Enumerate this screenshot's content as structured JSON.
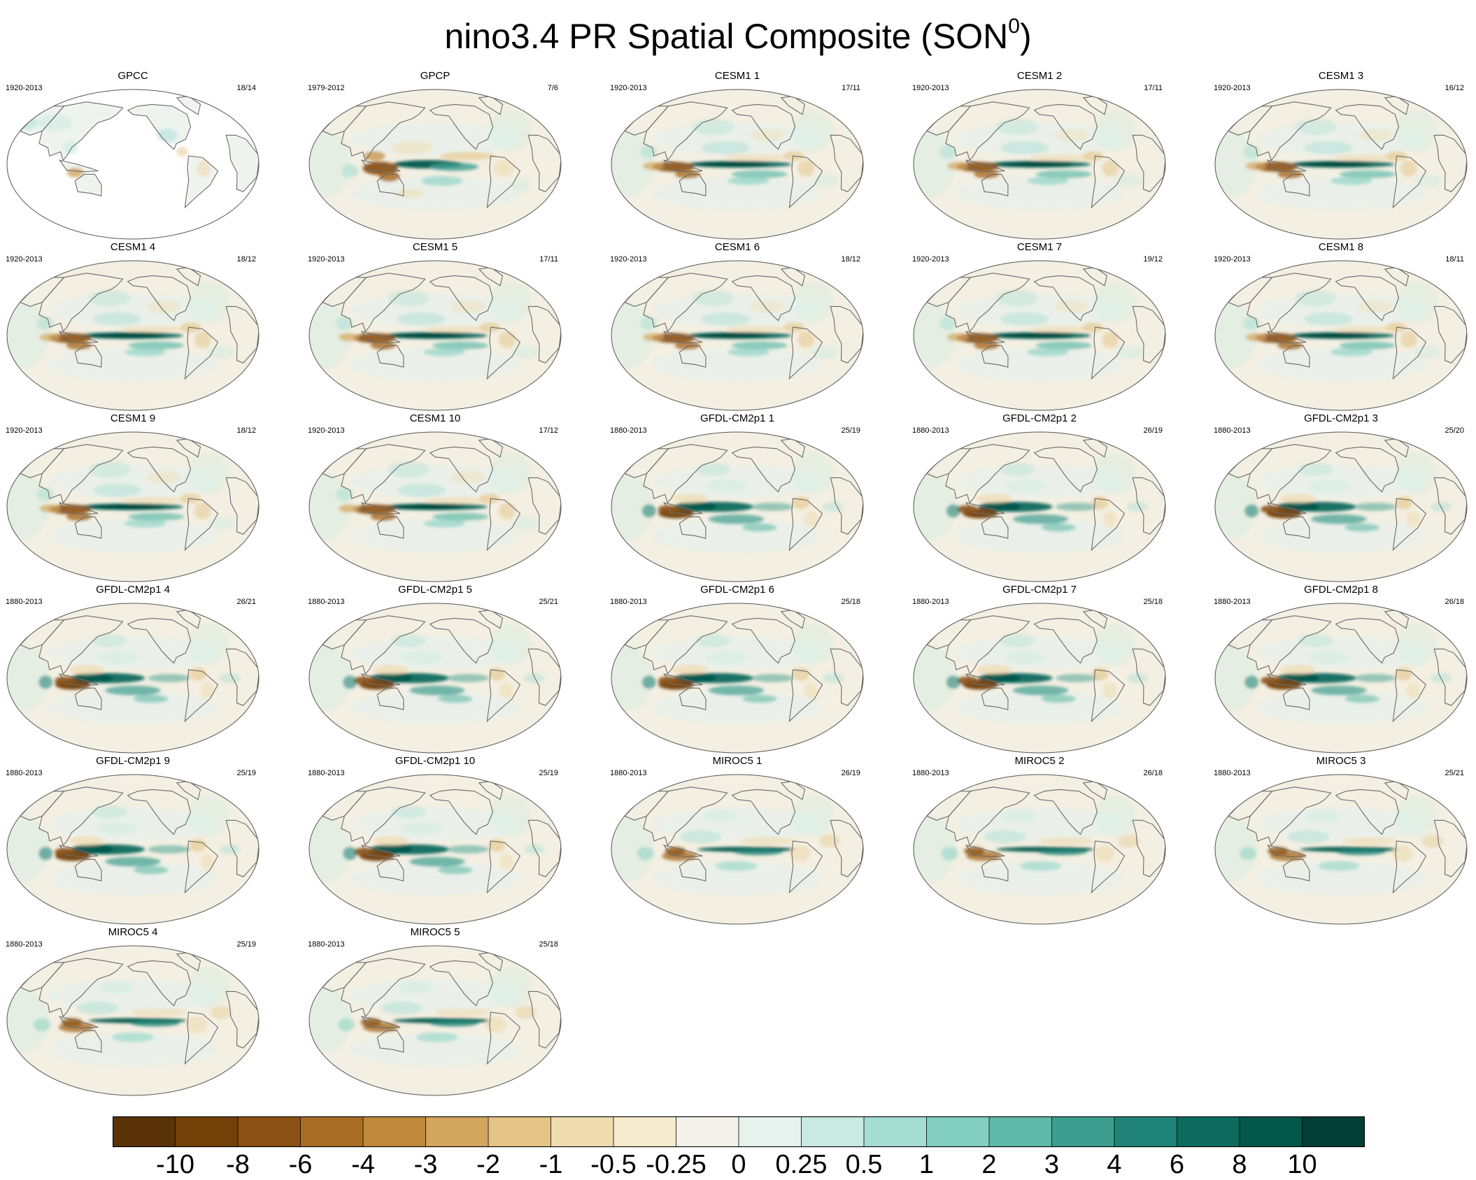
{
  "chart_data": {
    "type": "map-panels",
    "title": "nino3.4 PR Spatial Composite (SON",
    "title_superscript": "0",
    "title_suffix": ")",
    "projection": "Robinson-like, Pacific-centered",
    "panels": [
      {
        "name": "GPCC",
        "period": "1920-2013",
        "count": "18/14",
        "style": "land_only"
      },
      {
        "name": "GPCP",
        "period": "1979-2012",
        "count": "7/6",
        "style": "obs"
      },
      {
        "name": "CESM1 1",
        "period": "1920-2013",
        "count": "17/11",
        "style": "cesm"
      },
      {
        "name": "CESM1 2",
        "period": "1920-2013",
        "count": "17/11",
        "style": "cesm"
      },
      {
        "name": "CESM1 3",
        "period": "1920-2013",
        "count": "16/12",
        "style": "cesm"
      },
      {
        "name": "CESM1 4",
        "period": "1920-2013",
        "count": "18/12",
        "style": "cesm"
      },
      {
        "name": "CESM1 5",
        "period": "1920-2013",
        "count": "17/11",
        "style": "cesm"
      },
      {
        "name": "CESM1 6",
        "period": "1920-2013",
        "count": "18/12",
        "style": "cesm"
      },
      {
        "name": "CESM1 7",
        "period": "1920-2013",
        "count": "19/12",
        "style": "cesm"
      },
      {
        "name": "CESM1 8",
        "period": "1920-2013",
        "count": "18/11",
        "style": "cesm"
      },
      {
        "name": "CESM1 9",
        "period": "1920-2013",
        "count": "18/12",
        "style": "cesm"
      },
      {
        "name": "CESM1 10",
        "period": "1920-2013",
        "count": "17/12",
        "style": "cesm"
      },
      {
        "name": "GFDL-CM2p1 1",
        "period": "1880-2013",
        "count": "25/19",
        "style": "gfdl"
      },
      {
        "name": "GFDL-CM2p1 2",
        "period": "1880-2013",
        "count": "26/19",
        "style": "gfdl"
      },
      {
        "name": "GFDL-CM2p1 3",
        "period": "1880-2013",
        "count": "25/20",
        "style": "gfdl"
      },
      {
        "name": "GFDL-CM2p1 4",
        "period": "1880-2013",
        "count": "26/21",
        "style": "gfdl"
      },
      {
        "name": "GFDL-CM2p1 5",
        "period": "1880-2013",
        "count": "25/21",
        "style": "gfdl"
      },
      {
        "name": "GFDL-CM2p1 6",
        "period": "1880-2013",
        "count": "25/18",
        "style": "gfdl"
      },
      {
        "name": "GFDL-CM2p1 7",
        "period": "1880-2013",
        "count": "25/18",
        "style": "gfdl"
      },
      {
        "name": "GFDL-CM2p1 8",
        "period": "1880-2013",
        "count": "26/18",
        "style": "gfdl"
      },
      {
        "name": "GFDL-CM2p1 9",
        "period": "1880-2013",
        "count": "25/19",
        "style": "gfdl"
      },
      {
        "name": "GFDL-CM2p1 10",
        "period": "1880-2013",
        "count": "25/19",
        "style": "gfdl"
      },
      {
        "name": "MIROC5 1",
        "period": "1880-2013",
        "count": "26/19",
        "style": "miroc"
      },
      {
        "name": "MIROC5 2",
        "period": "1880-2013",
        "count": "26/18",
        "style": "miroc"
      },
      {
        "name": "MIROC5 3",
        "period": "1880-2013",
        "count": "25/21",
        "style": "miroc"
      },
      {
        "name": "MIROC5 4",
        "period": "1880-2013",
        "count": "25/19",
        "style": "miroc"
      },
      {
        "name": "MIROC5 5",
        "period": "1880-2013",
        "count": "25/18",
        "style": "miroc"
      }
    ],
    "colorbar": {
      "levels": [
        "-10",
        "-8",
        "-6",
        "-4",
        "-3",
        "-2",
        "-1",
        "-0.5",
        "-0.25",
        "0",
        "0.25",
        "0.5",
        "1",
        "2",
        "3",
        "4",
        "6",
        "8",
        "10"
      ],
      "colors": [
        "#5a3208",
        "#734008",
        "#8c5114",
        "#a86d24",
        "#c08a3c",
        "#d3a65e",
        "#e4c487",
        "#efdbb0",
        "#f6ebcf",
        "#f3f1ea",
        "#e5f2ee",
        "#c8eae2",
        "#a6ddd2",
        "#82cfbf",
        "#5fbaa9",
        "#3c9d8e",
        "#1f8477",
        "#0d6a5e",
        "#03574b",
        "#023f35"
      ]
    }
  }
}
